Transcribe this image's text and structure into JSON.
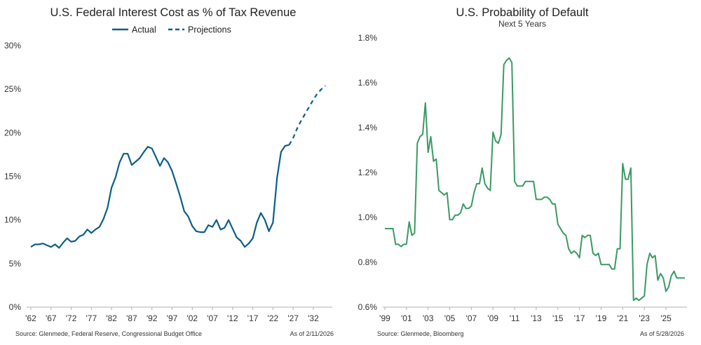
{
  "chart_data": [
    {
      "type": "line",
      "title": "U.S. Federal Interest Cost as % of Tax Revenue",
      "xlabel": "",
      "ylabel": "",
      "xlim": [
        1962,
        2036
      ],
      "ylim": [
        0,
        30
      ],
      "x_ticks": [
        1962,
        1967,
        1972,
        1977,
        1982,
        1987,
        1992,
        1997,
        2002,
        2007,
        2012,
        2017,
        2022,
        2027,
        2032
      ],
      "x_tick_labels": [
        "'62",
        "'67",
        "'72",
        "'77",
        "'82",
        "'87",
        "'92",
        "'97",
        "'02",
        "'07",
        "'12",
        "'17",
        "'22",
        "'27",
        "'32"
      ],
      "y_ticks": [
        0,
        5,
        10,
        15,
        20,
        25,
        30
      ],
      "y_tick_labels": [
        "0%",
        "5%",
        "10%",
        "15%",
        "20%",
        "25%",
        "30%"
      ],
      "grid": false,
      "legend_position": "top-center",
      "colors": {
        "actual": "#0b5f86",
        "projections": "#0b5f86"
      },
      "series": [
        {
          "name": "Actual",
          "style": "solid",
          "x": [
            1962,
            1963,
            1964,
            1965,
            1966,
            1967,
            1968,
            1969,
            1970,
            1971,
            1972,
            1973,
            1974,
            1975,
            1976,
            1977,
            1978,
            1979,
            1980,
            1981,
            1982,
            1983,
            1984,
            1985,
            1986,
            1987,
            1988,
            1989,
            1990,
            1991,
            1992,
            1993,
            1994,
            1995,
            1996,
            1997,
            1998,
            1999,
            2000,
            2001,
            2002,
            2003,
            2004,
            2005,
            2006,
            2007,
            2008,
            2009,
            2010,
            2011,
            2012,
            2013,
            2014,
            2015,
            2016,
            2017,
            2018,
            2019,
            2020,
            2021,
            2022,
            2023,
            2024,
            2025,
            2026
          ],
          "values": [
            6.9,
            7.2,
            7.2,
            7.3,
            7.1,
            6.9,
            7.2,
            6.8,
            7.4,
            7.9,
            7.5,
            7.6,
            8.1,
            8.3,
            8.9,
            8.5,
            8.9,
            9.2,
            10.1,
            11.4,
            13.7,
            14.9,
            16.6,
            17.6,
            17.6,
            16.3,
            16.7,
            17.1,
            17.8,
            18.4,
            18.2,
            17.2,
            16.2,
            17.1,
            16.6,
            15.6,
            14.2,
            12.7,
            11.0,
            10.4,
            9.3,
            8.7,
            8.6,
            8.6,
            9.4,
            9.2,
            10.0,
            8.9,
            9.1,
            10.0,
            9.0,
            8.0,
            7.6,
            6.9,
            7.3,
            7.9,
            9.7,
            10.8,
            10.0,
            8.7,
            9.7,
            14.8,
            17.8,
            18.5,
            18.6
          ]
        },
        {
          "name": "Projections",
          "style": "dashed",
          "x": [
            2026,
            2027,
            2028,
            2029,
            2030,
            2031,
            2032,
            2033,
            2034,
            2035
          ],
          "values": [
            18.6,
            19.4,
            20.5,
            21.4,
            22.2,
            23.0,
            23.8,
            24.5,
            25.0,
            25.4
          ]
        }
      ],
      "source": "Source: Glenmede, Federal Reserve, Congressional Budget Office",
      "as_of": "As of 2/11/2026"
    },
    {
      "type": "line",
      "title": "U.S. Probability of Default",
      "subtitle": "Next 5 Years",
      "xlabel": "",
      "ylabel": "",
      "xlim": [
        1999,
        2026.75
      ],
      "ylim": [
        0.6,
        1.8
      ],
      "x_ticks": [
        1999,
        2001,
        2003,
        2005,
        2007,
        2009,
        2011,
        2013,
        2015,
        2017,
        2019,
        2021,
        2023,
        2025
      ],
      "x_tick_labels": [
        "'99",
        "'01",
        "'03",
        "'05",
        "'07",
        "'09",
        "'11",
        "'13",
        "'15",
        "'17",
        "'19",
        "'21",
        "'23",
        "'25"
      ],
      "y_ticks": [
        0.6,
        0.8,
        1.0,
        1.2,
        1.4,
        1.6,
        1.8
      ],
      "y_tick_labels": [
        "0.6%",
        "0.8%",
        "1.0%",
        "1.2%",
        "1.4%",
        "1.6%",
        "1.8%"
      ],
      "grid": false,
      "colors": {
        "line": "#3a9a63"
      },
      "series": [
        {
          "style": "solid",
          "x": [
            1999.0,
            1999.25,
            1999.5,
            1999.75,
            2000.0,
            2000.25,
            2000.5,
            2000.75,
            2001.0,
            2001.25,
            2001.5,
            2001.75,
            2002.0,
            2002.25,
            2002.5,
            2002.75,
            2003.0,
            2003.25,
            2003.5,
            2003.75,
            2004.0,
            2004.25,
            2004.5,
            2004.75,
            2005.0,
            2005.25,
            2005.5,
            2005.75,
            2006.0,
            2006.25,
            2006.5,
            2006.75,
            2007.0,
            2007.25,
            2007.5,
            2007.75,
            2008.0,
            2008.25,
            2008.5,
            2008.75,
            2009.0,
            2009.25,
            2009.5,
            2009.75,
            2010.0,
            2010.25,
            2010.5,
            2010.75,
            2011.0,
            2011.25,
            2011.5,
            2011.75,
            2012.0,
            2012.25,
            2012.5,
            2012.75,
            2013.0,
            2013.25,
            2013.5,
            2013.75,
            2014.0,
            2014.25,
            2014.5,
            2014.75,
            2015.0,
            2015.25,
            2015.5,
            2015.75,
            2016.0,
            2016.25,
            2016.5,
            2016.75,
            2017.0,
            2017.25,
            2017.5,
            2017.75,
            2018.0,
            2018.25,
            2018.5,
            2018.75,
            2019.0,
            2019.25,
            2019.5,
            2019.75,
            2020.0,
            2020.25,
            2020.5,
            2020.75,
            2021.0,
            2021.25,
            2021.5,
            2021.75,
            2022.0,
            2022.25,
            2022.5,
            2022.75,
            2023.0,
            2023.25,
            2023.5,
            2023.75,
            2024.0,
            2024.25,
            2024.5,
            2024.75,
            2025.0,
            2025.25,
            2025.5,
            2025.75,
            2026.0,
            2026.25,
            2026.5,
            2026.75
          ],
          "values": [
            0.95,
            0.95,
            0.95,
            0.95,
            0.88,
            0.88,
            0.87,
            0.88,
            0.88,
            0.98,
            0.92,
            0.93,
            1.33,
            1.36,
            1.37,
            1.51,
            1.29,
            1.36,
            1.25,
            1.26,
            1.12,
            1.11,
            1.1,
            1.11,
            0.99,
            0.99,
            1.01,
            1.01,
            1.02,
            1.06,
            1.04,
            1.04,
            1.05,
            1.11,
            1.15,
            1.15,
            1.22,
            1.15,
            1.13,
            1.12,
            1.38,
            1.34,
            1.33,
            1.37,
            1.68,
            1.7,
            1.71,
            1.69,
            1.16,
            1.14,
            1.14,
            1.14,
            1.16,
            1.16,
            1.16,
            1.16,
            1.08,
            1.08,
            1.08,
            1.09,
            1.09,
            1.08,
            1.06,
            1.06,
            0.97,
            0.95,
            0.93,
            0.92,
            0.86,
            0.84,
            0.85,
            0.84,
            0.82,
            0.92,
            0.91,
            0.92,
            0.92,
            0.84,
            0.83,
            0.84,
            0.79,
            0.79,
            0.79,
            0.79,
            0.77,
            0.77,
            0.86,
            0.86,
            1.24,
            1.17,
            1.17,
            1.22,
            0.63,
            0.64,
            0.63,
            0.64,
            0.65,
            0.79,
            0.84,
            0.82,
            0.83,
            0.72,
            0.75,
            0.73,
            0.67,
            0.69,
            0.74,
            0.76,
            0.73,
            0.73,
            0.73,
            0.73
          ]
        }
      ],
      "source": "Source: Glenmede, Bloomberg",
      "as_of": "As of 5/28/2026"
    }
  ]
}
